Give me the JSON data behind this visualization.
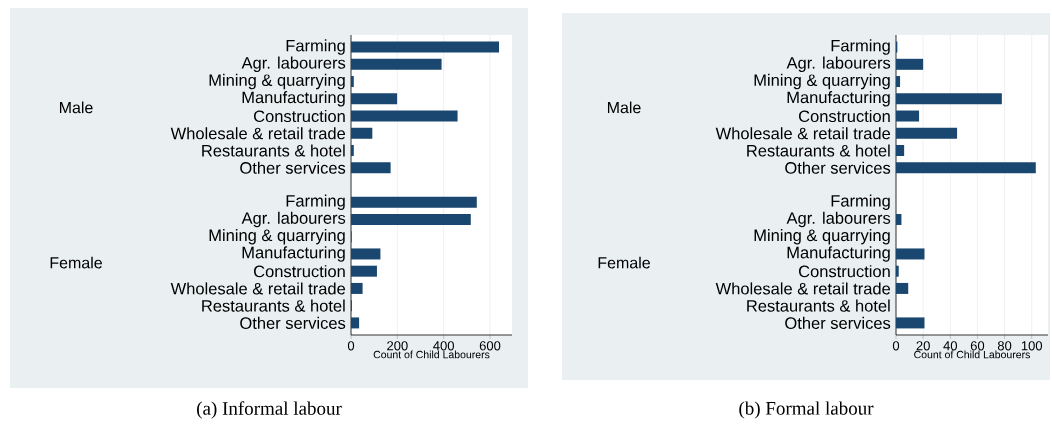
{
  "chart_data": [
    {
      "type": "bar",
      "orientation": "horizontal",
      "title": "(a)  Informal labour",
      "xlabel": "Count of Child Labourers",
      "categories": [
        "Farming",
        "Agr. labourers",
        "Mining & quarrying",
        "Manufacturing",
        "Construction",
        "Wholesale & retail trade",
        "Restaurants & hotel",
        "Other services",
        "Farming",
        "Agr. labourers",
        "Mining & quarrying",
        "Manufacturing",
        "Construction",
        "Wholesale & retail trade",
        "Restaurants & hotel",
        "Other services"
      ],
      "values": [
        639,
        391,
        12,
        199,
        460,
        92,
        12,
        171,
        543,
        517,
        3,
        127,
        112,
        50,
        4,
        35
      ],
      "color": "#1a476f",
      "xlim": [
        0,
        695
      ],
      "xticks": [
        0,
        200,
        400,
        600
      ],
      "grid": "x",
      "annotations": [
        "Male",
        "Female"
      ]
    },
    {
      "type": "bar",
      "orientation": "horizontal",
      "title": "(b)  Formal labour",
      "xlabel": "Count of Child Labourers",
      "categories": [
        "Farming",
        "Agr. labourers",
        "Mining & quarrying",
        "Manufacturing",
        "Construction",
        "Wholesale & retail trade",
        "Restaurants & hotel",
        "Other services",
        "Farming",
        "Agr. labourers",
        "Mining & quarrying",
        "Manufacturing",
        "Construction",
        "Wholesale & retail trade",
        "Restaurants & hotel",
        "Other services"
      ],
      "values": [
        1,
        20,
        3,
        78,
        17,
        45,
        6,
        103,
        0,
        4,
        0,
        21,
        2,
        9,
        0,
        21
      ],
      "color": "#1a476f",
      "xlim": [
        0,
        112
      ],
      "xticks": [
        0,
        20,
        40,
        60,
        80,
        100
      ],
      "grid": "x",
      "annotations": [
        "Male",
        "Female"
      ]
    }
  ]
}
